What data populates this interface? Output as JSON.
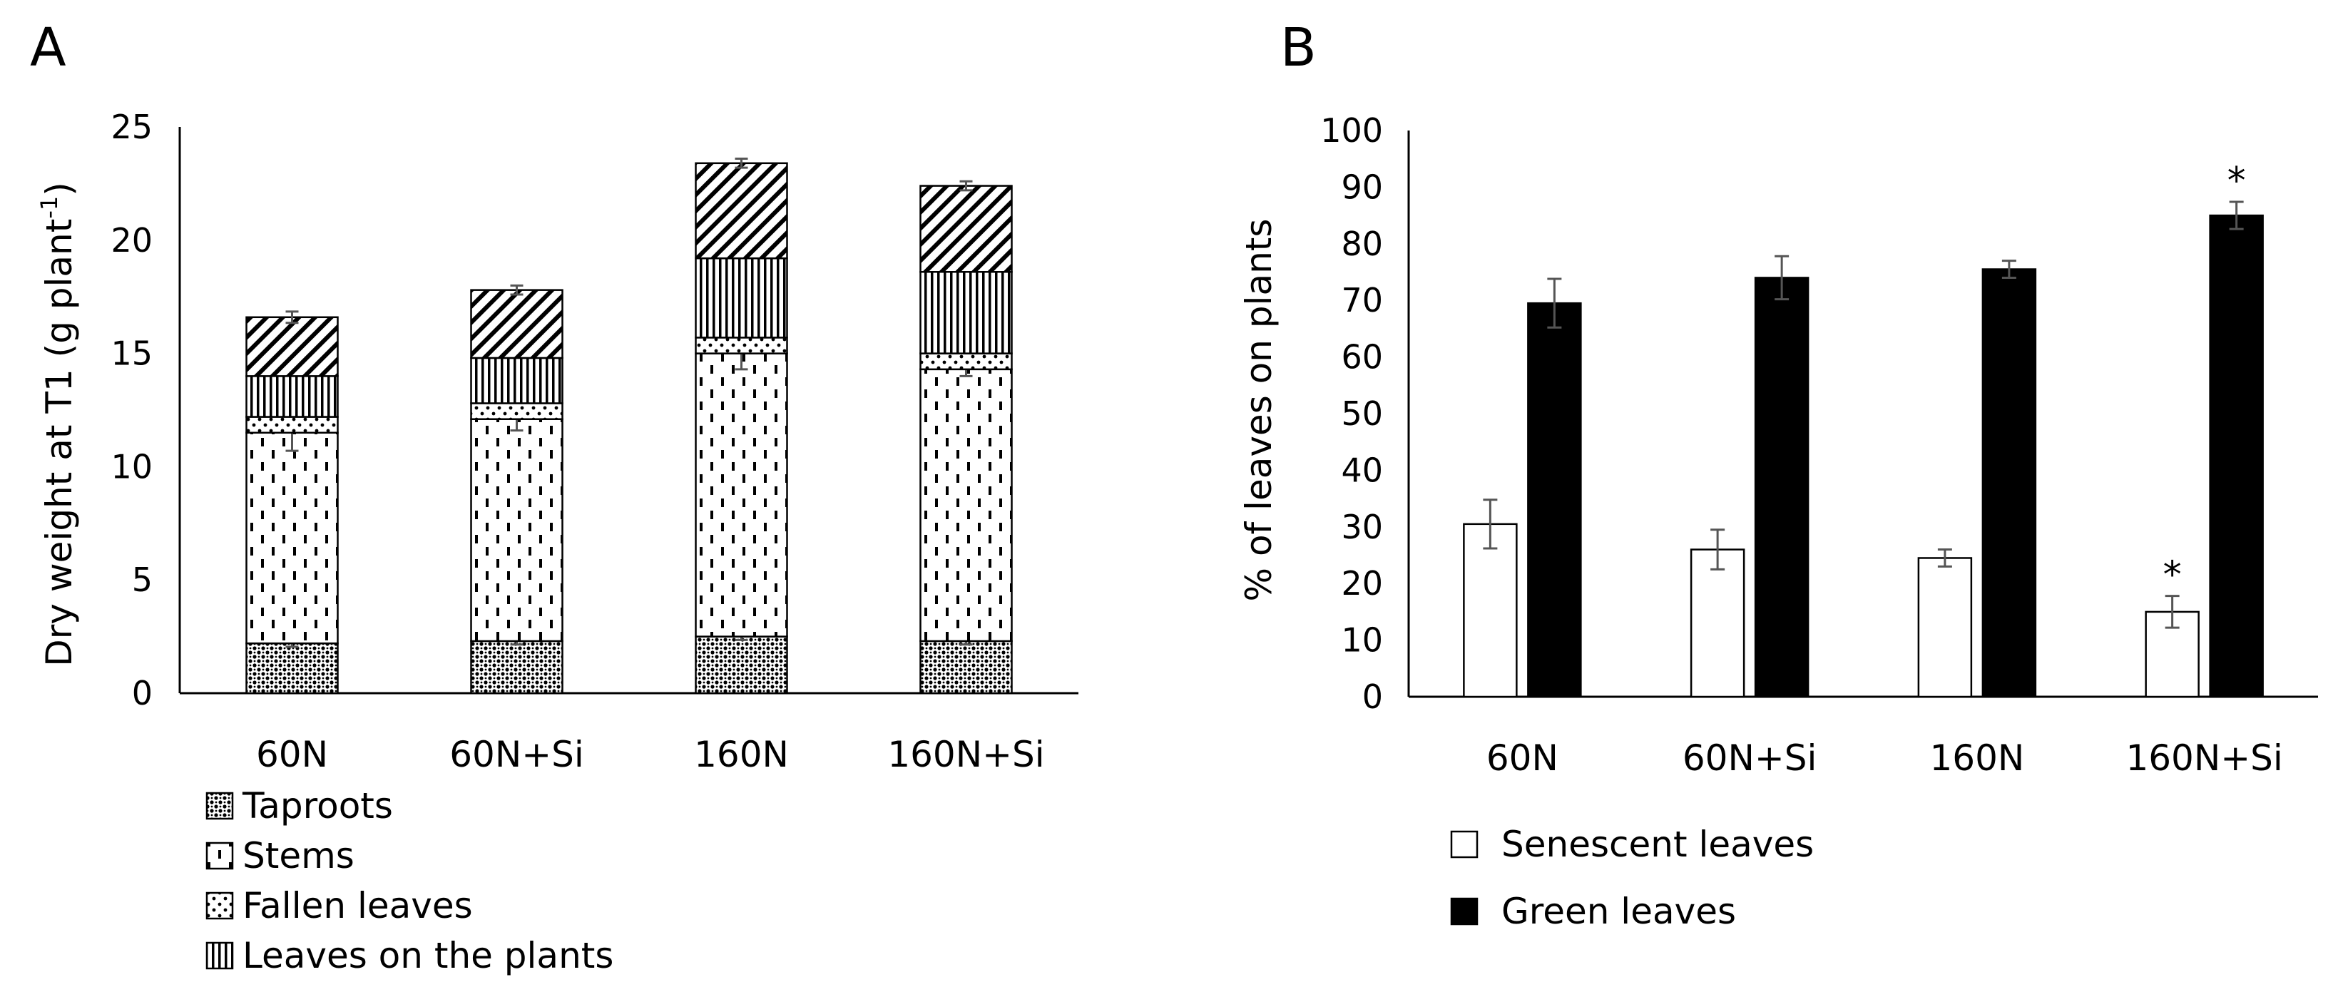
{
  "chart_data": [
    {
      "panel": "A",
      "type": "bar",
      "stacked": true,
      "ylabel": "Dry weight at T1 (g plant⁻¹)",
      "ylabel_main": "Dry weight at T1 (g plant",
      "ylabel_sup": "-1",
      "ylabel_end": ")",
      "ylim": [
        0,
        25
      ],
      "yticks": [
        "0",
        "5",
        "10",
        "15",
        "20",
        "25"
      ],
      "categories": [
        "60N",
        "60N+Si",
        "160N",
        "160N+Si"
      ],
      "legend_position": "bottom-left",
      "grid": false,
      "series": [
        {
          "name": "Taproots",
          "pattern": "dots-dense",
          "values": [
            2.2,
            2.3,
            2.5,
            2.3
          ],
          "errors": [
            0.15,
            0.15,
            0.15,
            0.15
          ]
        },
        {
          "name": "Stems",
          "pattern": "dashes",
          "values": [
            9.3,
            9.8,
            12.5,
            12.0
          ],
          "errors": [
            0.8,
            0.5,
            0.7,
            0.3
          ]
        },
        {
          "name": "Fallen leaves",
          "pattern": "dots-sparse",
          "values": [
            0.7,
            0.7,
            0.7,
            0.7
          ],
          "errors": [
            0,
            0,
            0,
            0
          ]
        },
        {
          "name": "Leaves on the plants",
          "pattern": "vertical",
          "values": [
            1.8,
            2.0,
            3.5,
            3.6
          ],
          "errors": [
            0,
            0,
            0,
            0
          ]
        },
        {
          "name": "",
          "pattern": "diagonal",
          "values": [
            2.6,
            3.0,
            4.2,
            3.8
          ],
          "errors": [
            0.25,
            0.2,
            0.2,
            0.2
          ]
        }
      ],
      "legend": [
        "Taproots",
        "Stems",
        "Fallen leaves",
        "Leaves on the plants"
      ]
    },
    {
      "panel": "B",
      "type": "bar",
      "stacked": false,
      "ylabel": "% of leaves on plants",
      "ylim": [
        0,
        100
      ],
      "yticks": [
        "0",
        "10",
        "20",
        "30",
        "40",
        "50",
        "60",
        "70",
        "80",
        "90",
        "100"
      ],
      "categories": [
        "60N",
        "60N+Si",
        "160N",
        "160N+Si"
      ],
      "legend_position": "bottom-left",
      "grid": false,
      "series": [
        {
          "name": "Senescent leaves",
          "color": "#ffffff",
          "values": [
            30.5,
            26,
            24.5,
            15
          ],
          "errors": [
            4.3,
            3.5,
            1.5,
            2.8
          ],
          "significance": [
            "",
            "",
            "",
            "*"
          ]
        },
        {
          "name": "Green leaves",
          "color": "#000000",
          "values": [
            69.5,
            74,
            75.5,
            85
          ],
          "errors": [
            4.3,
            3.8,
            1.5,
            2.4
          ],
          "significance": [
            "",
            "",
            "",
            "*"
          ]
        }
      ],
      "legend": [
        "Senescent leaves",
        "Green leaves"
      ]
    }
  ]
}
